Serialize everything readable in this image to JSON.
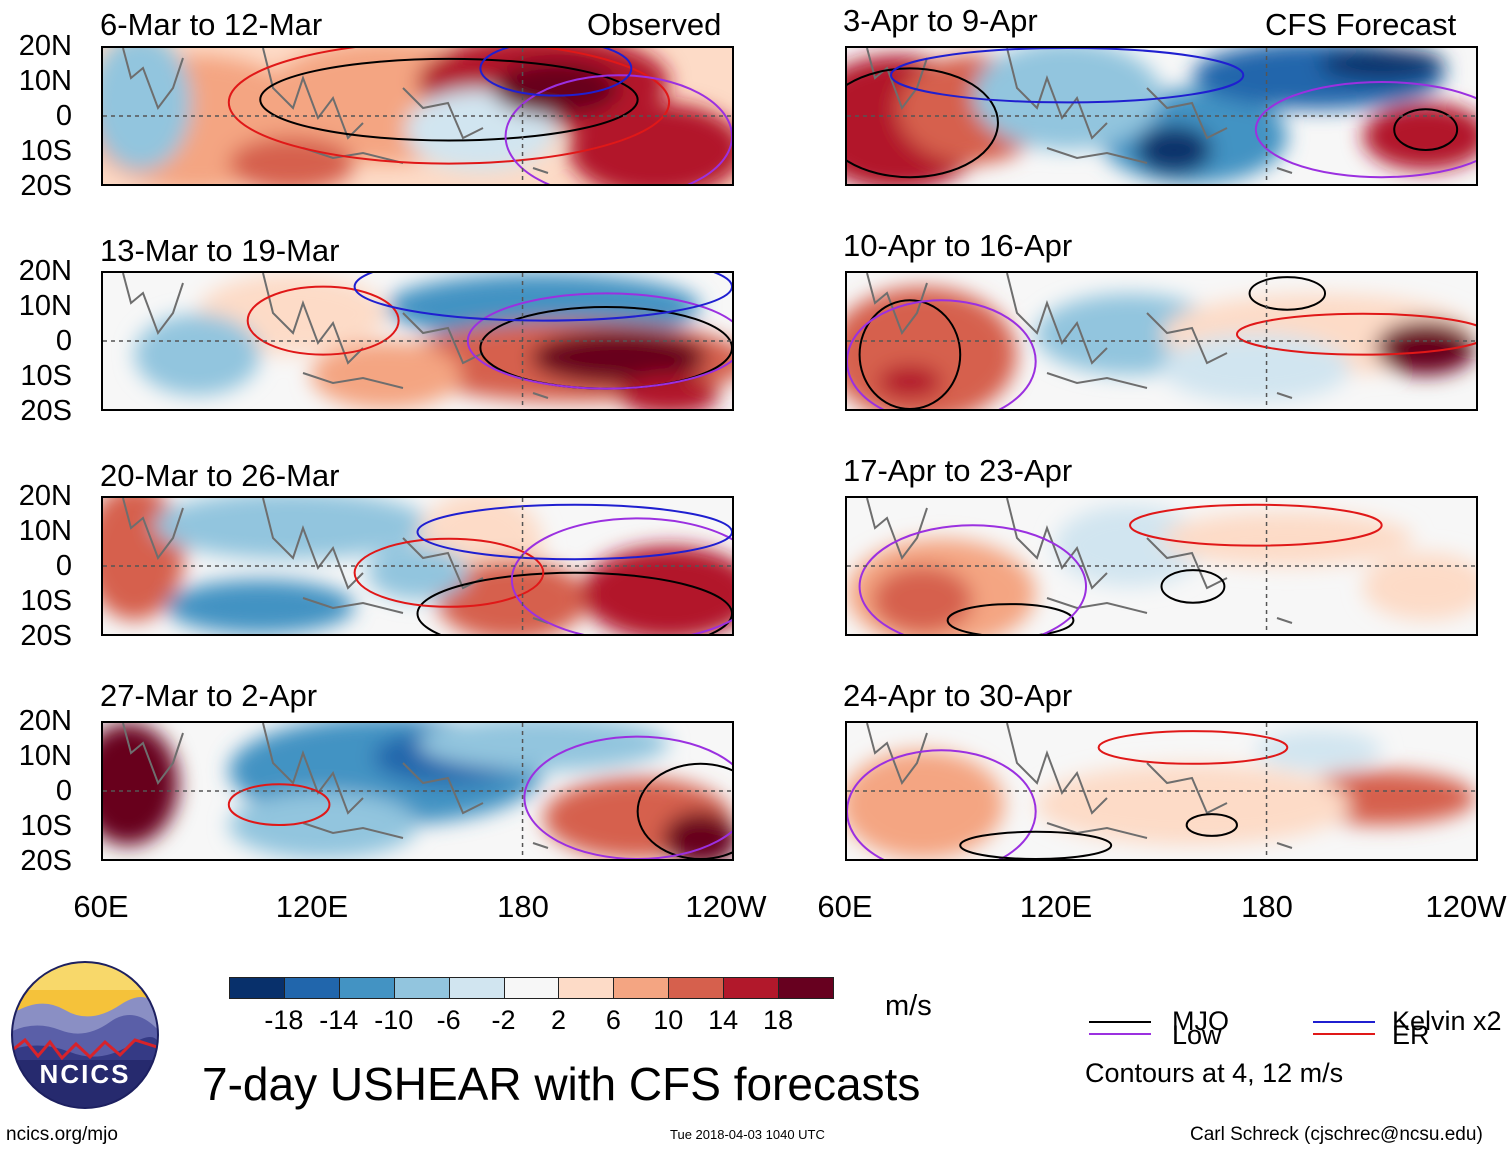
{
  "header": {
    "observed_label": "Observed",
    "forecast_label": "CFS Forecast"
  },
  "panels_left": [
    {
      "title": "6-Mar to 12-Mar"
    },
    {
      "title": "13-Mar to 19-Mar"
    },
    {
      "title": "20-Mar to 26-Mar"
    },
    {
      "title": "27-Mar to 2-Apr"
    }
  ],
  "panels_right": [
    {
      "title": "3-Apr to 9-Apr"
    },
    {
      "title": "10-Apr to 16-Apr"
    },
    {
      "title": "17-Apr to 23-Apr"
    },
    {
      "title": "24-Apr to 30-Apr"
    }
  ],
  "chart_data": {
    "type": "heatmap",
    "title": "7-day USHEAR with CFS forecasts",
    "variable": "USHEAR",
    "units": "m/s",
    "y_ticks": [
      "20N",
      "10N",
      "0",
      "10S",
      "20S"
    ],
    "x_ticks": [
      "60E",
      "120E",
      "180",
      "120W"
    ],
    "colorbar": {
      "ticks": [
        "-18",
        "-14",
        "-10",
        "-6",
        "-2",
        "2",
        "6",
        "10",
        "14",
        "18"
      ],
      "colors": [
        "#08306b",
        "#2166ac",
        "#4393c3",
        "#92c5de",
        "#d1e5f0",
        "#f7f7f7",
        "#fddbc7",
        "#f4a582",
        "#d6604d",
        "#b2182b",
        "#67001f"
      ]
    },
    "contours": "Contours at 4, 12 m/s",
    "legend": [
      {
        "name": "MJO",
        "color": "#000000"
      },
      {
        "name": "Kelvin x2",
        "color": "#1f1fd0"
      },
      {
        "name": "Low",
        "color": "#9b30e0"
      },
      {
        "name": "ER",
        "color": "#e01818"
      }
    ]
  },
  "footer": {
    "logo_text": "NCICS",
    "site": "ncics.org/mjo",
    "timestamp": "Tue 2018-04-03 1040 UTC",
    "author": "Carl Schreck (cjschrec@ncsu.edu)"
  }
}
